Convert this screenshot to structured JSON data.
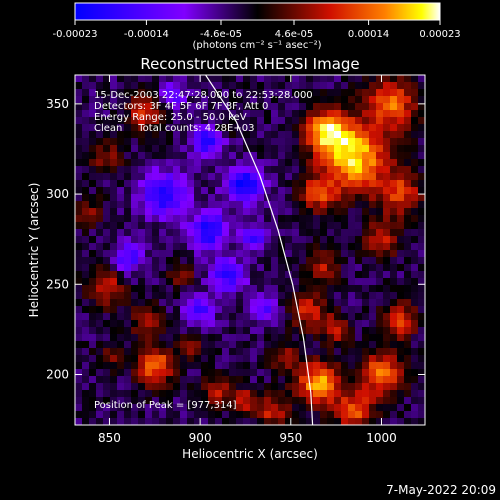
{
  "chart_data": {
    "type": "heatmap",
    "title": "Reconstructed RHESSI Image",
    "xlabel": "Heliocentric X (arcsec)",
    "ylabel": "Heliocentric Y (arcsec)",
    "xlim": [
      831,
      1024
    ],
    "ylim": [
      172,
      366
    ],
    "x_ticks": [
      850,
      900,
      950,
      1000
    ],
    "y_ticks": [
      200,
      250,
      300,
      350
    ],
    "colorbar": {
      "range": [
        -0.00023,
        0.00023
      ],
      "tick_values": [
        -0.00023,
        -0.00014,
        -4.6e-05,
        4.6e-05,
        0.00014,
        0.00023
      ],
      "tick_labels": [
        "-0.00023",
        "-0.00014",
        "-4.6e-05",
        "4.6e-05",
        "0.00014",
        "0.00023"
      ],
      "unit_label": "(photons cm⁻² s⁻¹ asec⁻²)",
      "colors": [
        "#0000ff",
        "#8000ff",
        "#000000",
        "#d01000",
        "#ff8000",
        "#ffff00",
        "#ffffff"
      ]
    },
    "info_lines": [
      "15-Dec-2003 22:47:28.000 to 22:53:28.000",
      "Detectors: 3F 4F 5F 6F 7F 8F, Att 0",
      "Energy Range: 25.0 - 50.0 keV",
      "Clean     Total counts: 4.28E+03"
    ],
    "peak_label": "Position of Peak = [977,314]",
    "limb_curve": [
      [
        903,
        366
      ],
      [
        920,
        340
      ],
      [
        933,
        310
      ],
      [
        943,
        280
      ],
      [
        951,
        250
      ],
      [
        957,
        220
      ],
      [
        961,
        190
      ],
      [
        962,
        172
      ]
    ],
    "blobs": [
      {
        "x": 985,
        "y": 320,
        "r": 18,
        "v": 1.0
      },
      {
        "x": 970,
        "y": 335,
        "r": 12,
        "v": 0.9
      },
      {
        "x": 1005,
        "y": 350,
        "r": 14,
        "v": 0.75
      },
      {
        "x": 1010,
        "y": 300,
        "r": 12,
        "v": 0.6
      },
      {
        "x": 965,
        "y": 300,
        "r": 10,
        "v": 0.6
      },
      {
        "x": 1000,
        "y": 275,
        "r": 10,
        "v": 0.5
      },
      {
        "x": 968,
        "y": 260,
        "r": 9,
        "v": 0.45
      },
      {
        "x": 960,
        "y": 235,
        "r": 10,
        "v": 0.55
      },
      {
        "x": 975,
        "y": 225,
        "r": 8,
        "v": 0.5
      },
      {
        "x": 1010,
        "y": 230,
        "r": 10,
        "v": 0.6
      },
      {
        "x": 1000,
        "y": 200,
        "r": 12,
        "v": 0.8
      },
      {
        "x": 965,
        "y": 195,
        "r": 12,
        "v": 0.9
      },
      {
        "x": 985,
        "y": 180,
        "r": 10,
        "v": 0.7
      },
      {
        "x": 940,
        "y": 180,
        "r": 8,
        "v": 0.55
      },
      {
        "x": 945,
        "y": 210,
        "r": 8,
        "v": 0.4
      },
      {
        "x": 870,
        "y": 345,
        "r": 10,
        "v": 0.55
      },
      {
        "x": 848,
        "y": 320,
        "r": 9,
        "v": 0.4
      },
      {
        "x": 910,
        "y": 335,
        "r": 8,
        "v": 0.35
      },
      {
        "x": 838,
        "y": 290,
        "r": 8,
        "v": 0.35
      },
      {
        "x": 848,
        "y": 248,
        "r": 10,
        "v": 0.55
      },
      {
        "x": 870,
        "y": 230,
        "r": 9,
        "v": 0.4
      },
      {
        "x": 890,
        "y": 255,
        "r": 7,
        "v": 0.35
      },
      {
        "x": 875,
        "y": 205,
        "r": 11,
        "v": 0.75
      },
      {
        "x": 850,
        "y": 210,
        "r": 7,
        "v": 0.35
      },
      {
        "x": 910,
        "y": 190,
        "r": 9,
        "v": 0.45
      },
      {
        "x": 895,
        "y": 215,
        "r": 6,
        "v": 0.35
      },
      {
        "x": 925,
        "y": 185,
        "r": 7,
        "v": 0.5
      }
    ],
    "neg_blobs": [
      {
        "x": 905,
        "y": 330,
        "r": 9,
        "v": 0.8
      },
      {
        "x": 925,
        "y": 305,
        "r": 10,
        "v": 0.85
      },
      {
        "x": 905,
        "y": 280,
        "r": 10,
        "v": 0.8
      },
      {
        "x": 880,
        "y": 300,
        "r": 12,
        "v": 0.75
      },
      {
        "x": 860,
        "y": 265,
        "r": 8,
        "v": 0.6
      },
      {
        "x": 915,
        "y": 255,
        "r": 9,
        "v": 0.7
      },
      {
        "x": 930,
        "y": 275,
        "r": 7,
        "v": 0.6
      },
      {
        "x": 900,
        "y": 235,
        "r": 8,
        "v": 0.55
      },
      {
        "x": 935,
        "y": 235,
        "r": 7,
        "v": 0.5
      },
      {
        "x": 885,
        "y": 355,
        "r": 7,
        "v": 0.45
      }
    ]
  },
  "footer": {
    "datestamp": "7-May-2022 20:09"
  }
}
